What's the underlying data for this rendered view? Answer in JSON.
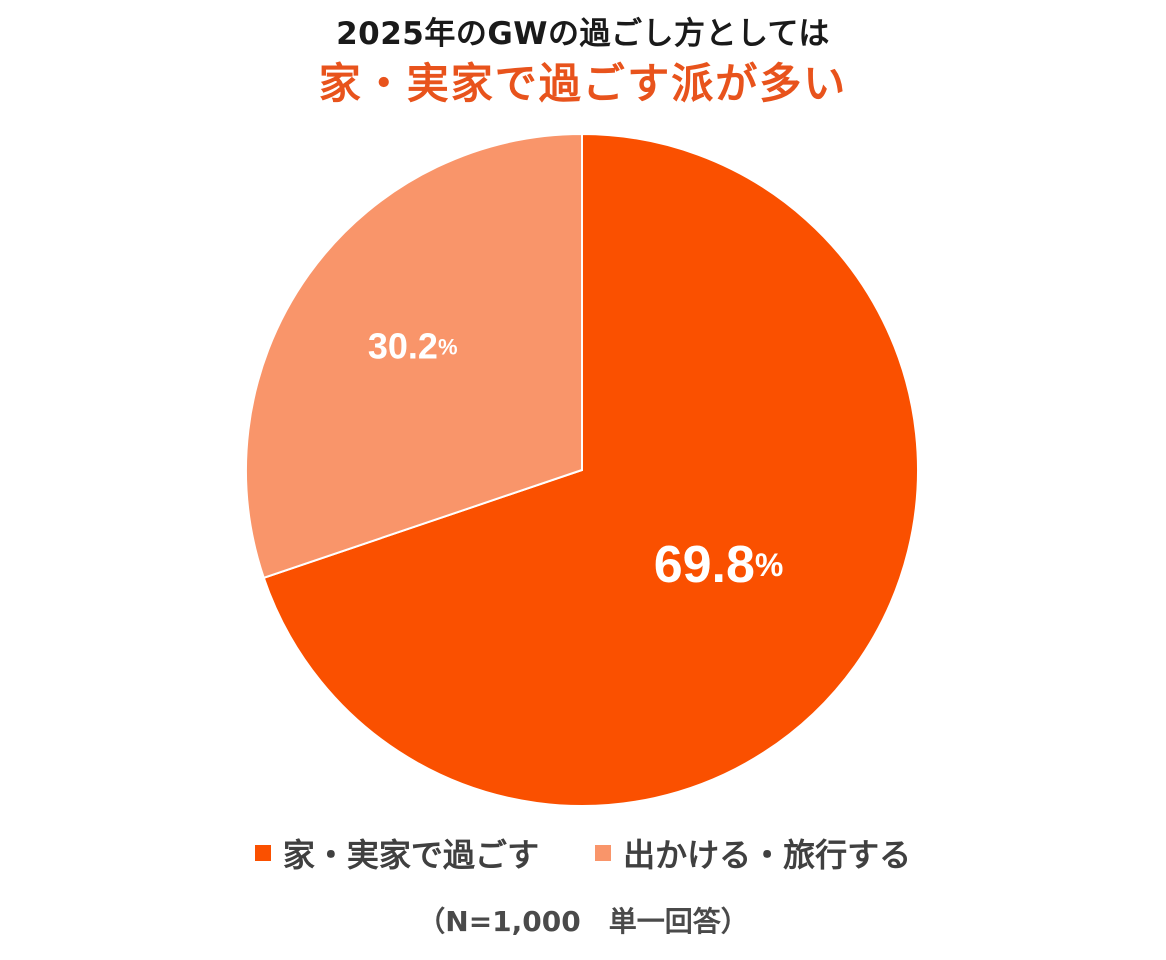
{
  "title_line1": "2025年のGWの過ごし方としては",
  "title_line2": "家・実家で過ごす派が多い",
  "note": "（N=1,000　単一回答）",
  "colors": {
    "primary": "#fa5000",
    "secondary": "#f9956a",
    "title_accent": "#e8531c"
  },
  "chart_data": {
    "type": "pie",
    "slices": [
      {
        "label": "家・実家で過ごす",
        "value": 69.8,
        "display_value": "69.8",
        "unit": "%",
        "color": "#fa5000"
      },
      {
        "label": "出かける・旅行する",
        "value": 30.2,
        "display_value": "30.2",
        "unit": "%",
        "color": "#f9956a"
      }
    ],
    "legend_position": "bottom"
  }
}
